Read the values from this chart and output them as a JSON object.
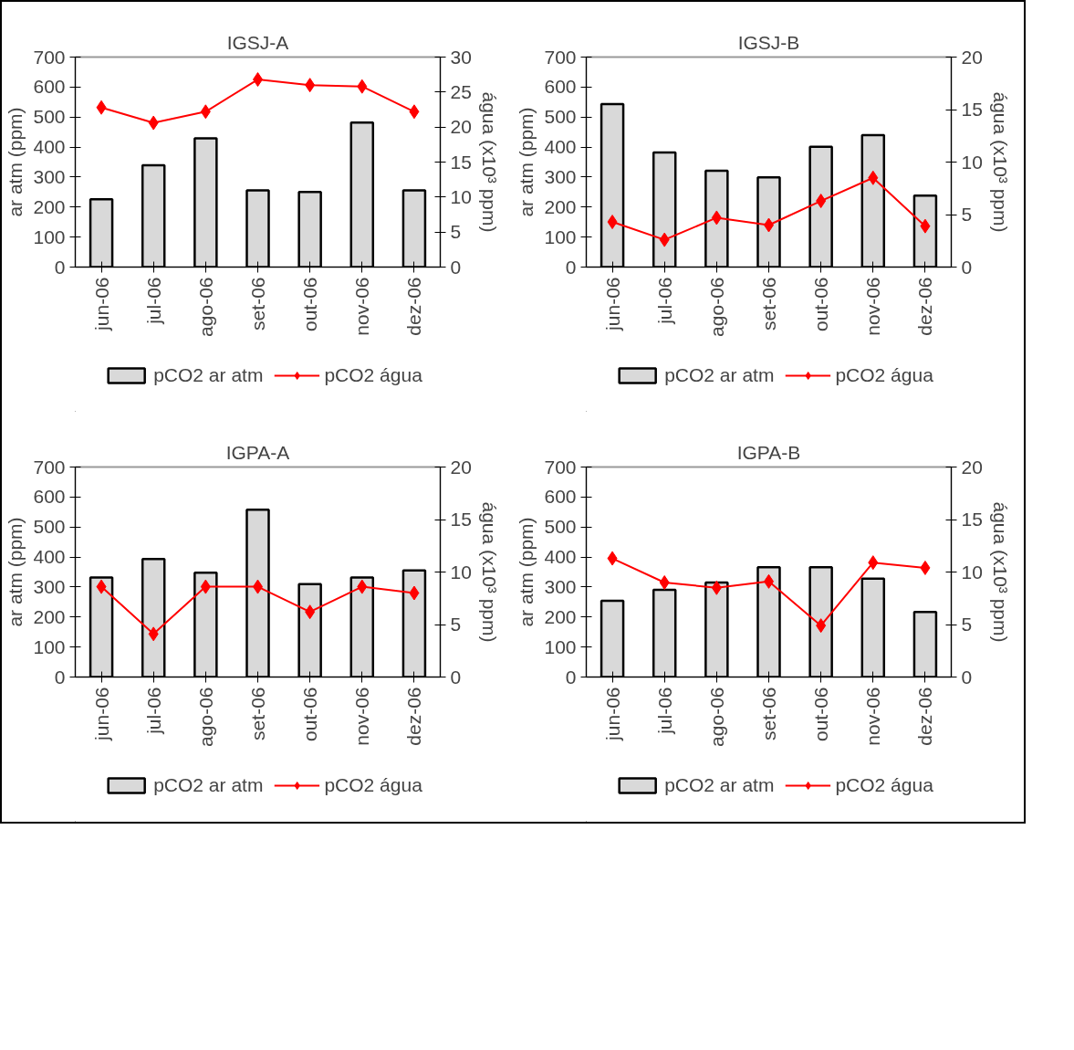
{
  "chart_data": [
    {
      "type": "bar",
      "title": "IGSJ-A",
      "ylabel": "ar atm (ppm)",
      "y2label": "água (x10³ ppm)",
      "categories": [
        "jun-06",
        "jul-06",
        "ago-06",
        "set-06",
        "out-06",
        "nov-06",
        "dez-06"
      ],
      "series": [
        {
          "name": "pCO2 ar atm",
          "type": "bar",
          "color": "#d9d9d9",
          "values": [
            226,
            339,
            429,
            256,
            250,
            482,
            256
          ]
        },
        {
          "name": "pCO2 água",
          "type": "line",
          "axis": "y2",
          "color": "#ff0000",
          "values": [
            22.8,
            20.6,
            22.2,
            26.8,
            26.0,
            25.8,
            22.2
          ]
        }
      ],
      "ylim": [
        0,
        700
      ],
      "yticks": [
        0,
        100,
        200,
        300,
        400,
        500,
        600,
        700
      ],
      "y2lim": [
        0,
        30
      ],
      "y2ticks": [
        0,
        5,
        10,
        15,
        20,
        25,
        30
      ],
      "legend": "bottom",
      "marker": "diamond",
      "grid": false
    },
    {
      "type": "bar",
      "title": "IGSJ-B",
      "ylabel": "ar atm (ppm)",
      "y2label": "água (x10³ ppm)",
      "categories": [
        "jun-06",
        "jul-06",
        "ago-06",
        "set-06",
        "out-06",
        "nov-06",
        "dez-06"
      ],
      "series": [
        {
          "name": "pCO2 ar atm",
          "type": "bar",
          "color": "#d9d9d9",
          "values": [
            543,
            382,
            321,
            299,
            401,
            440,
            238
          ]
        },
        {
          "name": "pCO2 água",
          "type": "line",
          "axis": "y2",
          "color": "#ff0000",
          "values": [
            4.3,
            2.6,
            4.7,
            4.0,
            6.3,
            8.5,
            3.9
          ]
        }
      ],
      "ylim": [
        0,
        700
      ],
      "yticks": [
        0,
        100,
        200,
        300,
        400,
        500,
        600,
        700
      ],
      "y2lim": [
        0,
        20
      ],
      "y2ticks": [
        0,
        5,
        10,
        15,
        20
      ],
      "legend": "bottom",
      "marker": "diamond",
      "grid": false
    },
    {
      "type": "bar",
      "title": "IGPA-A",
      "ylabel": "ar atm (ppm)",
      "y2label": "água (x10³ ppm)",
      "categories": [
        "jun-06",
        "jul-06",
        "ago-06",
        "set-06",
        "out-06",
        "nov-06",
        "dez-06"
      ],
      "series": [
        {
          "name": "pCO2 ar atm",
          "type": "bar",
          "color": "#d9d9d9",
          "values": [
            332,
            393,
            348,
            558,
            310,
            332,
            355
          ]
        },
        {
          "name": "pCO2 água",
          "type": "line",
          "axis": "y2",
          "color": "#ff0000",
          "values": [
            8.6,
            4.1,
            8.6,
            8.6,
            6.2,
            8.6,
            8.0
          ]
        }
      ],
      "ylim": [
        0,
        700
      ],
      "yticks": [
        0,
        100,
        200,
        300,
        400,
        500,
        600,
        700
      ],
      "y2lim": [
        0,
        20
      ],
      "y2ticks": [
        0,
        5,
        10,
        15,
        20
      ],
      "legend": "bottom",
      "marker": "diamond",
      "grid": false
    },
    {
      "type": "bar",
      "title": "IGPA-B",
      "ylabel": "ar atm (ppm)",
      "y2label": "água (x10³ ppm)",
      "categories": [
        "jun-06",
        "jul-06",
        "ago-06",
        "set-06",
        "out-06",
        "nov-06",
        "dez-06"
      ],
      "series": [
        {
          "name": "pCO2 ar atm",
          "type": "bar",
          "color": "#d9d9d9",
          "values": [
            254,
            291,
            315,
            366,
            366,
            328,
            217
          ]
        },
        {
          "name": "pCO2 água",
          "type": "line",
          "axis": "y2",
          "color": "#ff0000",
          "values": [
            11.3,
            9.0,
            8.5,
            9.1,
            4.9,
            10.9,
            10.4
          ]
        }
      ],
      "ylim": [
        0,
        700
      ],
      "yticks": [
        0,
        100,
        200,
        300,
        400,
        500,
        600,
        700
      ],
      "y2lim": [
        0,
        20
      ],
      "y2ticks": [
        0,
        5,
        10,
        15,
        20
      ],
      "legend": "bottom",
      "marker": "diamond",
      "grid": false
    }
  ]
}
